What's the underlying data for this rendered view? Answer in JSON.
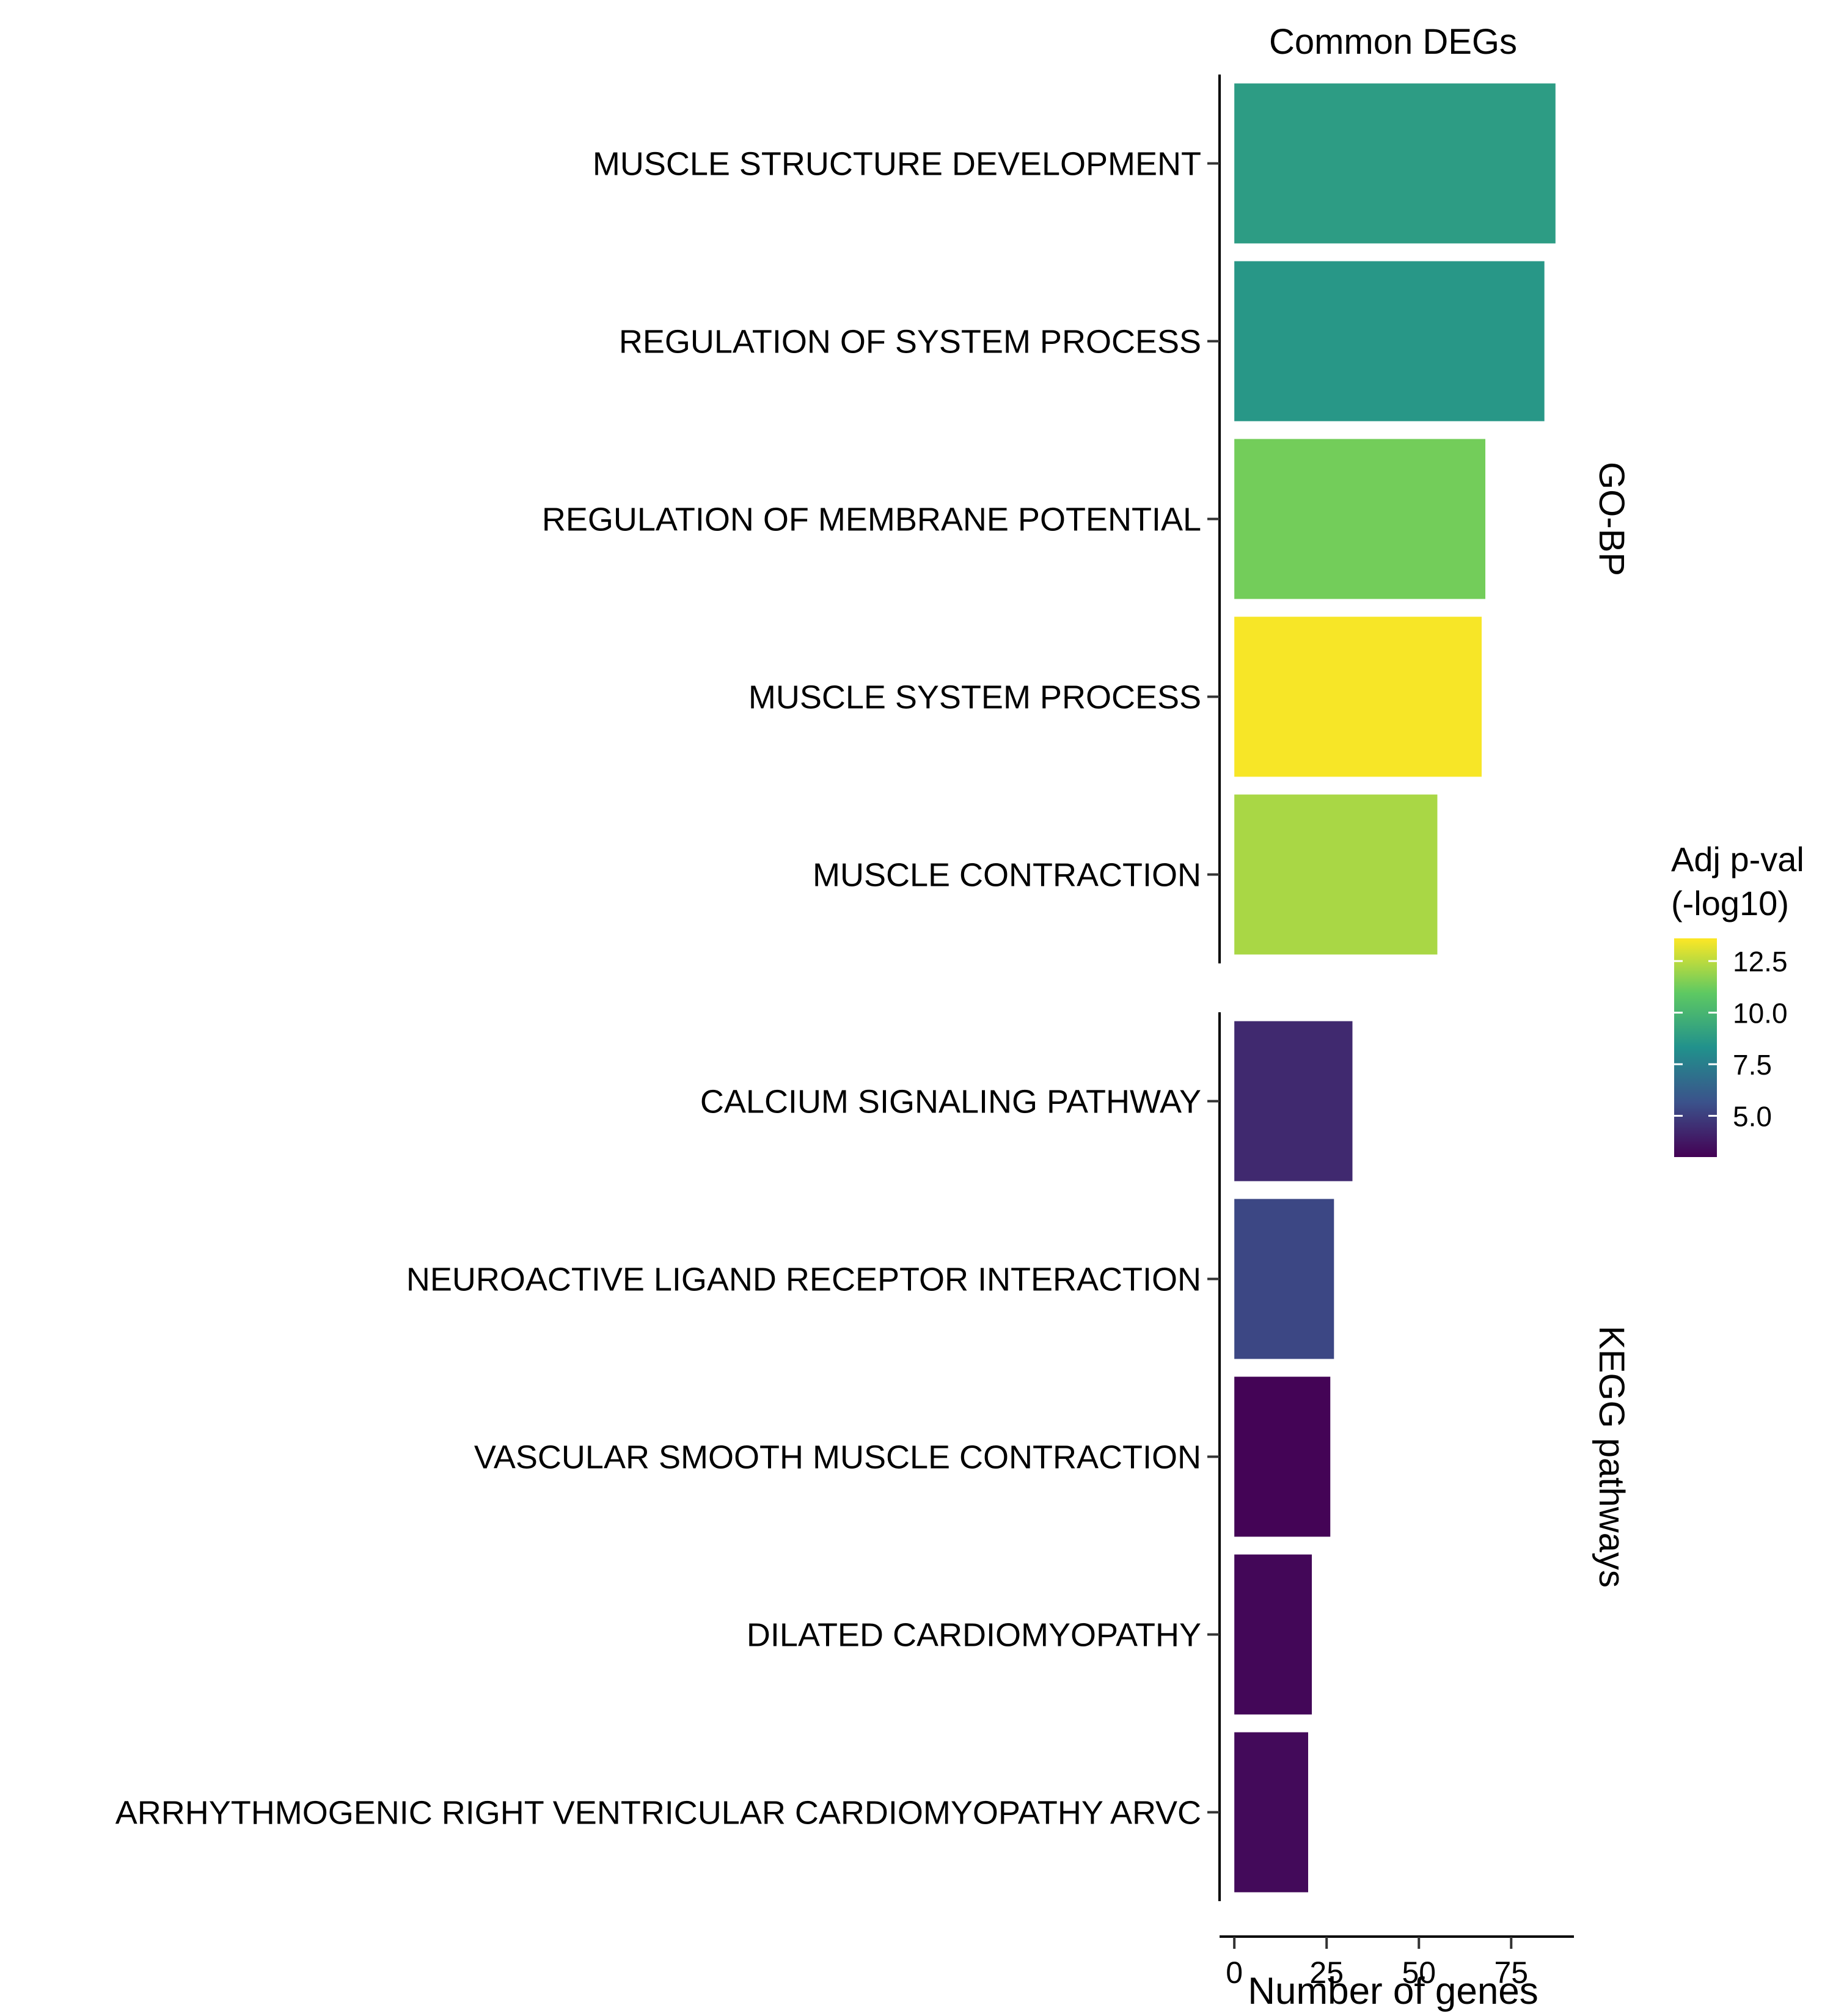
{
  "chart_data": {
    "type": "bar",
    "orientation": "horizontal",
    "title": "Common DEGs",
    "xlabel": "Number of genes",
    "xlim": [
      -4,
      92
    ],
    "xticks": [
      0,
      25,
      50,
      75
    ],
    "xtick_labels": [
      "0",
      "25",
      "50",
      "75"
    ],
    "panels": [
      {
        "name": "GO-BP",
        "categories": [
          "MUSCLE STRUCTURE DEVELOPMENT",
          "REGULATION OF SYSTEM PROCESS",
          "REGULATION OF MEMBRANE POTENTIAL",
          "MUSCLE SYSTEM PROCESS",
          "MUSCLE CONTRACTION"
        ],
        "values": [
          87,
          84,
          68,
          67,
          55
        ],
        "neg_log10_padj": [
          8.8,
          8.6,
          11.3,
          13.5,
          12.2
        ]
      },
      {
        "name": "KEGG pathways",
        "categories": [
          "CALCIUM SIGNALING PATHWAY",
          "NEUROACTIVE LIGAND RECEPTOR INTERACTION",
          "VASCULAR SMOOTH MUSCLE CONTRACTION",
          "DILATED CARDIOMYOPATHY",
          "ARRHYTHMOGENIC RIGHT VENTRICULAR CARDIOMYOPATHY ARVC"
        ],
        "values": [
          32,
          27,
          26,
          21,
          20
        ],
        "neg_log10_padj": [
          4.3,
          5.3,
          3.1,
          3.2,
          3.3
        ]
      }
    ],
    "colorbar": {
      "title_lines": [
        "Adj p-val",
        "(-log10)"
      ],
      "range": [
        3.0,
        13.6
      ],
      "ticks": [
        12.5,
        10.0,
        7.5,
        5.0
      ],
      "tick_labels": [
        "12.5",
        "10.0",
        "7.5",
        "5.0"
      ],
      "palette": "viridis",
      "colors": [
        "#440154",
        "#3b528b",
        "#21918c",
        "#5ec962",
        "#fde725"
      ]
    }
  }
}
